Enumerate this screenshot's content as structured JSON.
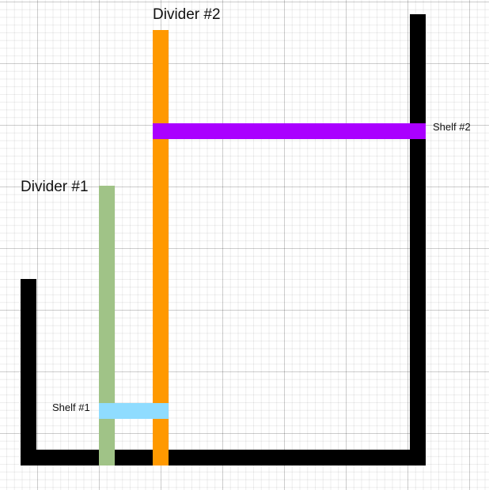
{
  "labels": {
    "divider1": "Divider #1",
    "divider2": "Divider #2",
    "shelf1": "Shelf #1",
    "shelf2": "Shelf #2"
  },
  "colors": {
    "frame": "#000000",
    "divider1": "#a0c387",
    "divider2": "#ff9900",
    "shelf1": "#8fdcff",
    "shelf2": "#aa00ff"
  }
}
